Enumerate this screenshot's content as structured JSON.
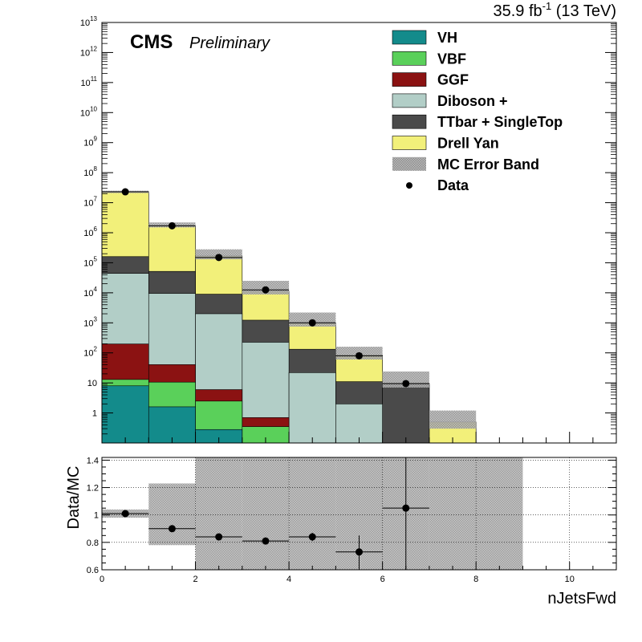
{
  "header": {
    "cms_label": "CMS",
    "prelim_label": "Preliminary",
    "lumi_main": "35.9 fb",
    "lumi_sup": "-1",
    "lumi_tail": " (13 TeV)"
  },
  "colors": {
    "VH": "#138b8b",
    "VBF": "#5ad05a",
    "GGF": "#8b1212",
    "Diboson": "#b2cec7",
    "TTbar": "#4a4a4a",
    "DrellYan": "#f2f07a",
    "ErrorBand": "#a8a8a8"
  },
  "chart_data": [
    {
      "type": "bar",
      "stacked": true,
      "ylog": true,
      "bin_edges": [
        0,
        1,
        2,
        3,
        4,
        5,
        6,
        7,
        8,
        9,
        10,
        11
      ],
      "xlim": [
        0,
        11
      ],
      "ylim": [
        0.1,
        10000000000000
      ],
      "y_tick_labels": [
        {
          "value": 1,
          "label": "1"
        },
        {
          "value": 10,
          "label": "10"
        },
        {
          "value": 100,
          "label": "10",
          "sup": "2"
        },
        {
          "value": 1000,
          "label": "10",
          "sup": "3"
        },
        {
          "value": 10000,
          "label": "10",
          "sup": "4"
        },
        {
          "value": 100000,
          "label": "10",
          "sup": "5"
        },
        {
          "value": 1000000,
          "label": "10",
          "sup": "6"
        },
        {
          "value": 10000000,
          "label": "10",
          "sup": "7"
        },
        {
          "value": 100000000,
          "label": "10",
          "sup": "8"
        },
        {
          "value": 1000000000,
          "label": "10",
          "sup": "9"
        },
        {
          "value": 10000000000,
          "label": "10",
          "sup": "10"
        },
        {
          "value": 100000000000,
          "label": "10",
          "sup": "11"
        },
        {
          "value": 1000000000000,
          "label": "10",
          "sup": "12"
        },
        {
          "value": 10000000000000,
          "label": "10",
          "sup": "13"
        }
      ],
      "series": [
        {
          "name": "VH",
          "key": "VH",
          "values": [
            8,
            1.6,
            0.28,
            0,
            0,
            0,
            0,
            0,
            0,
            0,
            0
          ]
        },
        {
          "name": "VBF",
          "key": "VBF",
          "values": [
            5,
            9,
            2.2,
            0.35,
            0,
            0,
            0,
            0,
            0,
            0,
            0
          ]
        },
        {
          "name": "GGF",
          "key": "GGF",
          "values": [
            185,
            30,
            3.5,
            0.35,
            0,
            0,
            0,
            0,
            0,
            0,
            0
          ]
        },
        {
          "name": "Diboson +",
          "key": "Diboson",
          "values": [
            44000,
            9500,
            2000,
            225,
            22,
            2,
            0,
            0,
            0,
            0,
            0
          ]
        },
        {
          "name": "TTbar + SingleTop",
          "key": "TTbar",
          "values": [
            116000,
            42000,
            7000,
            1000,
            110,
            9,
            9,
            0,
            0,
            0,
            0
          ]
        },
        {
          "name": "Drell Yan",
          "key": "DrellYan",
          "values": [
            23000000,
            1620000,
            161000,
            10000,
            840,
            74,
            0.8,
            0.5,
            0,
            0,
            0
          ]
        }
      ],
      "error_band": {
        "name": "MC Error Band",
        "low": [
          21000000,
          1500000,
          130000,
          8800,
          750,
          60,
          7,
          0.3,
          0,
          0,
          0
        ],
        "high": [
          25000000,
          2200000,
          280000,
          25000,
          2200,
          160,
          24,
          1.2,
          0,
          0,
          0
        ]
      },
      "data": {
        "name": "Data",
        "x": [
          0.5,
          1.5,
          2.5,
          3.5,
          4.5,
          5.5,
          6.5
        ],
        "y": [
          23000000,
          1700000,
          150000,
          12500,
          1000,
          80,
          9.5
        ]
      }
    },
    {
      "type": "scatter",
      "xlabel": "nJetsFwd",
      "ylabel": "Data/MC",
      "xlim": [
        0,
        11
      ],
      "ylim": [
        0.6,
        1.42
      ],
      "x_ticks": [
        0,
        2,
        4,
        6,
        8,
        10
      ],
      "x_tick_labels": [
        "0",
        "2",
        "4",
        "6",
        "8",
        "10"
      ],
      "y_ticks": [
        0.6,
        0.8,
        1,
        1.2,
        1.4
      ],
      "y_tick_labels": [
        "0.6",
        "0.8",
        "1",
        "1.2",
        "1.4"
      ],
      "grid": true,
      "ratio": {
        "x": [
          0.5,
          1.5,
          2.5,
          3.5,
          4.5,
          5.5,
          6.5
        ],
        "y": [
          1.01,
          0.9,
          0.84,
          0.81,
          0.84,
          0.73,
          1.05
        ],
        "yerr": [
          0.01,
          0.01,
          0.02,
          0.02,
          0.03,
          0.12,
          0.5
        ]
      },
      "band": {
        "low": [
          0.98,
          0.78,
          0.6,
          0.6,
          0.6,
          0.6,
          0.6,
          0.6,
          0.6
        ],
        "high": [
          1.04,
          1.23,
          1.42,
          1.42,
          1.42,
          1.42,
          1.42,
          1.42,
          1.42
        ]
      }
    }
  ]
}
